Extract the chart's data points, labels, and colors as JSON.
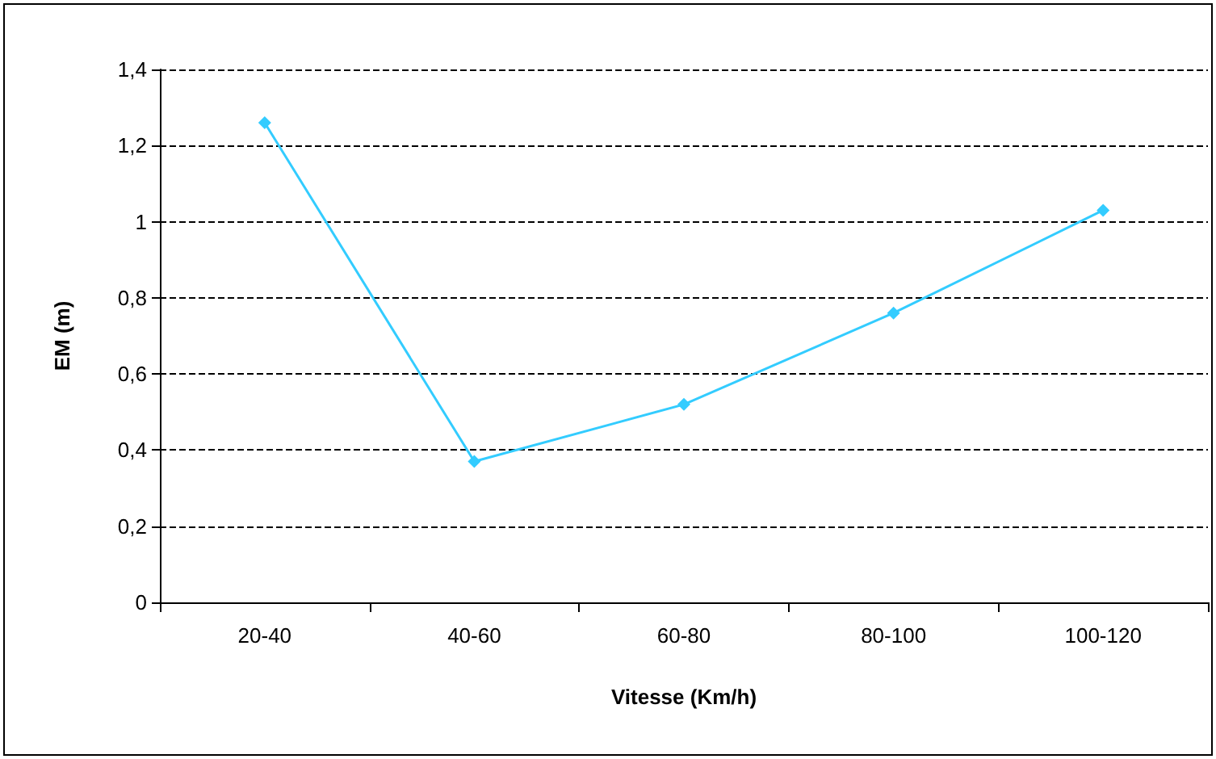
{
  "chart_data": {
    "type": "line",
    "xlabel": "Vitesse (Km/h)",
    "ylabel": "EM (m)",
    "categories": [
      "20-40",
      "40-60",
      "60-80",
      "80-100",
      "100-120"
    ],
    "series": [
      {
        "color": "#33ccff",
        "values": [
          1.26,
          0.37,
          0.52,
          0.76,
          1.03
        ]
      }
    ],
    "ylim": [
      0,
      1.4
    ],
    "yticks": [
      0,
      {
        "value": 0.2,
        "label": "0,2"
      },
      {
        "value": 0.4,
        "label": "0,4"
      },
      {
        "value": 0.6,
        "label": "0,6"
      },
      {
        "value": 0.8,
        "label": "0,8"
      },
      1,
      {
        "value": 1.2,
        "label": "1,2"
      },
      {
        "value": 1.4,
        "label": "1,4"
      }
    ],
    "grid": "y",
    "marker": "diamond",
    "line_style": "solid"
  }
}
